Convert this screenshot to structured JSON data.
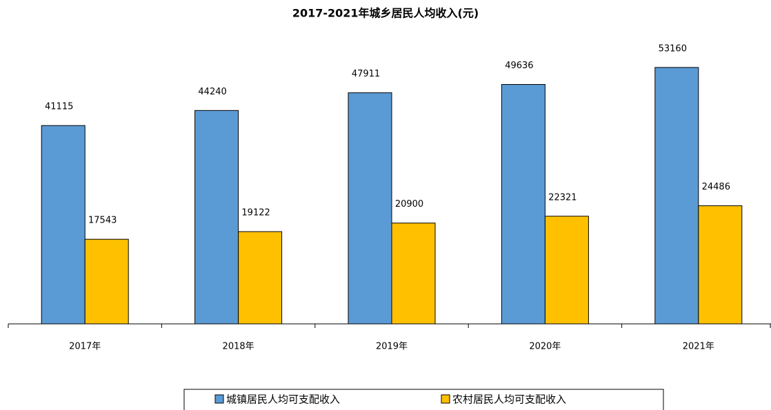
{
  "chart_data": {
    "type": "bar",
    "title": "2017-2021年城乡居民人均收入(元)",
    "categories": [
      "2017年",
      "2018年",
      "2019年",
      "2020年",
      "2021年"
    ],
    "series": [
      {
        "name": "城镇居民人均可支配收入",
        "color": "#5b9bd5",
        "values": [
          41115,
          44240,
          47911,
          49636,
          53160
        ]
      },
      {
        "name": "农村居民人均可支配收入",
        "color": "#ffc000",
        "values": [
          17543,
          19122,
          20900,
          22321,
          24486
        ]
      }
    ],
    "ylim": [
      0,
      60000
    ],
    "legend": "bottom"
  }
}
